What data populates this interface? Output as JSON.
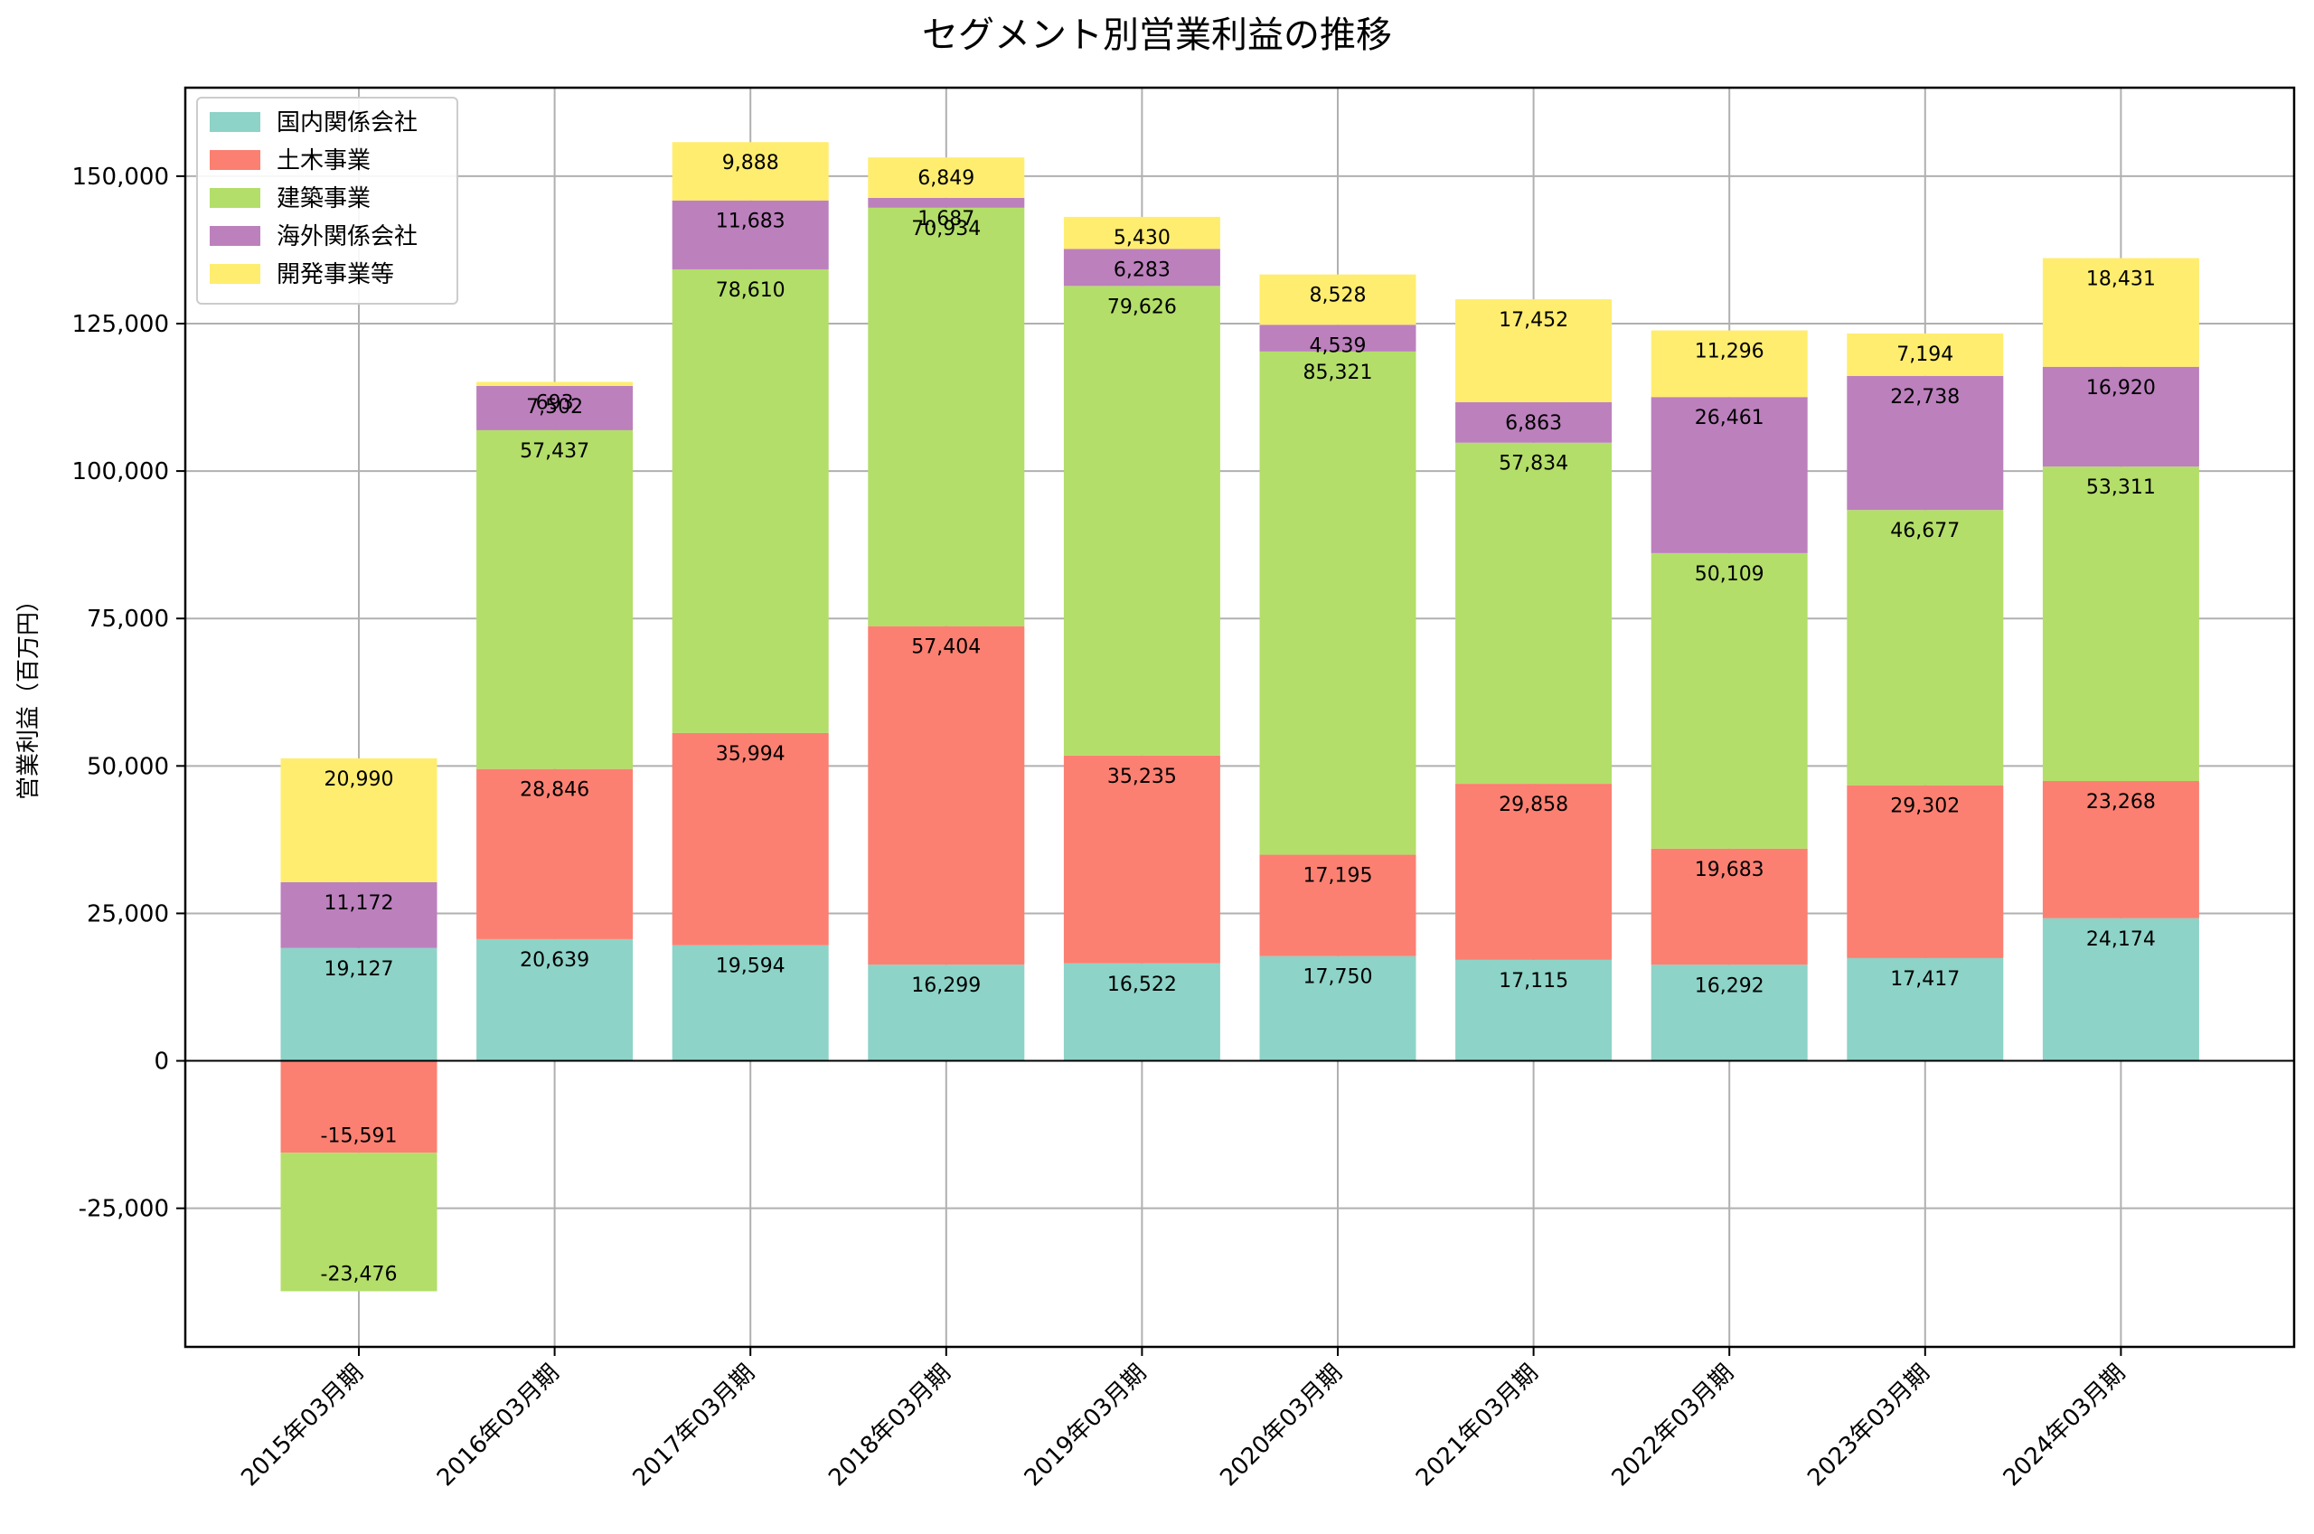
{
  "chart_data": {
    "type": "bar",
    "stacked": true,
    "title": "セグメント別営業利益の推移",
    "xlabel": "",
    "ylabel": "営業利益（百万円）",
    "ylim": [
      -48500,
      165000
    ],
    "yticks": [
      -25000,
      0,
      25000,
      50000,
      75000,
      100000,
      125000,
      150000
    ],
    "ytick_labels": [
      "-25,000",
      "0",
      "25,000",
      "50,000",
      "75,000",
      "100,000",
      "125,000",
      "150,000"
    ],
    "grid": true,
    "legend_position": "top-left",
    "categories": [
      "2015年03月期",
      "2016年03月期",
      "2017年03月期",
      "2018年03月期",
      "2019年03月期",
      "2020年03月期",
      "2021年03月期",
      "2022年03月期",
      "2023年03月期",
      "2024年03月期"
    ],
    "series": [
      {
        "name": "国内関係会社",
        "color": "#8dd3c7",
        "values": [
          19127,
          20639,
          19594,
          16299,
          16522,
          17750,
          17115,
          16292,
          17417,
          24174
        ]
      },
      {
        "name": "土木事業",
        "color": "#fb8072",
        "values": [
          -15591,
          28846,
          35994,
          57404,
          35235,
          17195,
          29858,
          19683,
          29302,
          23268
        ]
      },
      {
        "name": "建築事業",
        "color": "#b3de69",
        "values": [
          -23476,
          57437,
          78610,
          70934,
          79626,
          85321,
          57834,
          50109,
          46677,
          53311
        ]
      },
      {
        "name": "海外関係会社",
        "color": "#bc80bd",
        "values": [
          11172,
          7502,
          11683,
          1687,
          6283,
          4539,
          6863,
          26461,
          22738,
          16920
        ]
      },
      {
        "name": "開発事業等",
        "color": "#ffed6f",
        "values": [
          20990,
          693,
          9888,
          6849,
          5430,
          8528,
          17452,
          11296,
          7194,
          18431
        ]
      }
    ]
  }
}
